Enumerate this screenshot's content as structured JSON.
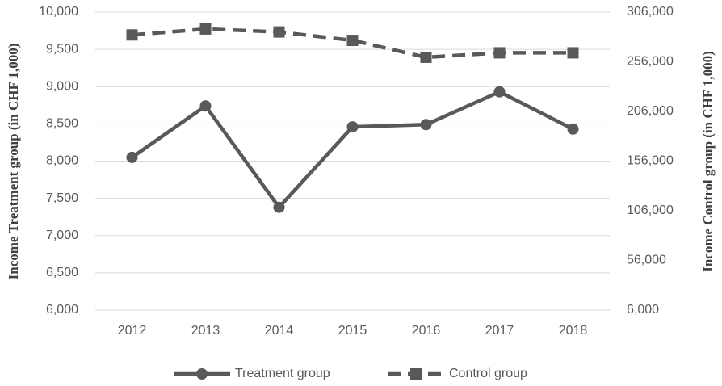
{
  "chart_data": {
    "type": "line",
    "y_label": "Income Treatment group (in CHF 1,000)",
    "y2_label": "Income Control group (in CHF 1,000)",
    "categories": [
      "2012",
      "2013",
      "2014",
      "2015",
      "2016",
      "2017",
      "2018"
    ],
    "series": [
      {
        "name": "Treatment group",
        "color": "#595959",
        "marker": "circle",
        "dash": false,
        "values": [
          8050,
          8740,
          7380,
          8460,
          8490,
          8930,
          8430
        ]
      },
      {
        "name": "Control group",
        "color": "#595959",
        "marker": "square",
        "dash": true,
        "axis": "y2",
        "values": [
          283000,
          289000,
          286000,
          277500,
          260500,
          265000,
          265000
        ]
      }
    ],
    "ylim": [
      6000,
      10000
    ],
    "yticks": [
      {
        "value": 6000,
        "label": "6,000"
      },
      {
        "value": 6500,
        "label": "6,500"
      },
      {
        "value": 7000,
        "label": "7,000"
      },
      {
        "value": 7500,
        "label": "7,500"
      },
      {
        "value": 8000,
        "label": "8,000"
      },
      {
        "value": 8500,
        "label": "8,500"
      },
      {
        "value": 9000,
        "label": "9,000"
      },
      {
        "value": 9500,
        "label": "9,500"
      },
      {
        "value": 10000,
        "label": "10,000"
      }
    ],
    "y2lim": [
      6000,
      306000
    ],
    "y2ticks": [
      {
        "value": 6000,
        "label": "6,000"
      },
      {
        "value": 56000,
        "label": "56,000"
      },
      {
        "value": 106000,
        "label": "106,000"
      },
      {
        "value": 156000,
        "label": "156,000"
      },
      {
        "value": 206000,
        "label": "206,000"
      },
      {
        "value": 256000,
        "label": "256,000"
      },
      {
        "value": 306000,
        "label": "306,000"
      }
    ],
    "grid": true,
    "legend": "bottom"
  }
}
